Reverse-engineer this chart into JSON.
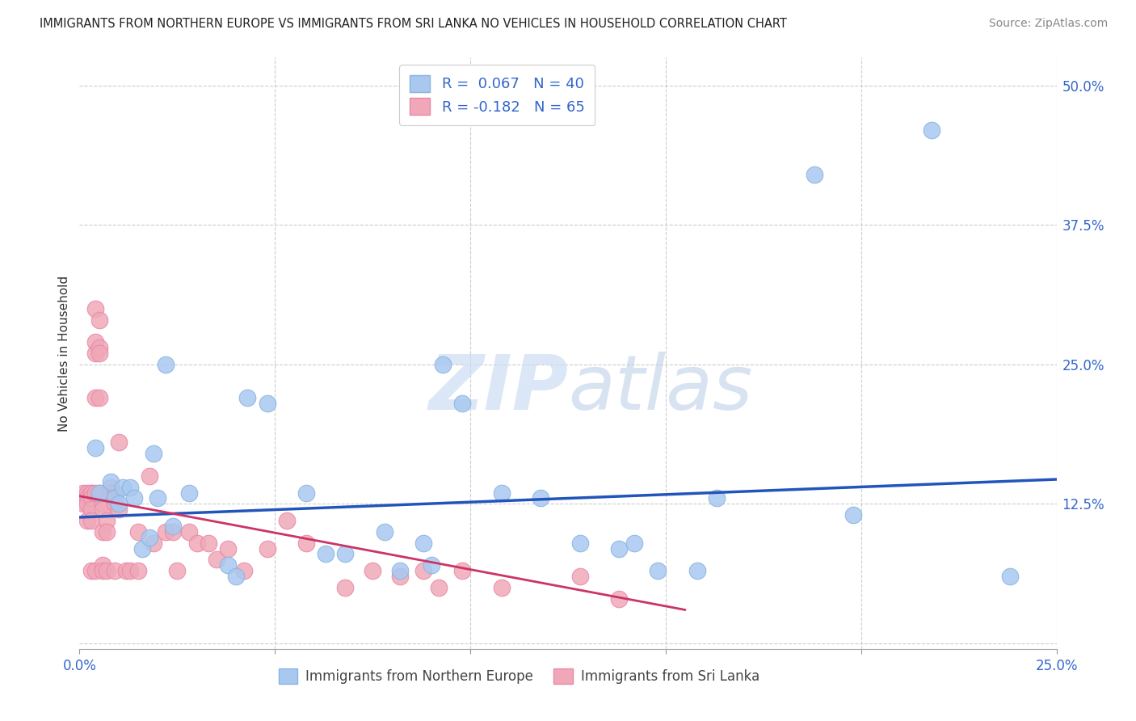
{
  "title": "IMMIGRANTS FROM NORTHERN EUROPE VS IMMIGRANTS FROM SRI LANKA NO VEHICLES IN HOUSEHOLD CORRELATION CHART",
  "source": "Source: ZipAtlas.com",
  "ylabel_label": "No Vehicles in Household",
  "right_yticks": [
    0.0,
    0.125,
    0.25,
    0.375,
    0.5
  ],
  "right_ytick_labels": [
    "",
    "12.5%",
    "25.0%",
    "37.5%",
    "50.0%"
  ],
  "xlim": [
    0.0,
    0.25
  ],
  "ylim": [
    -0.005,
    0.525
  ],
  "blue_R": 0.067,
  "blue_N": 40,
  "pink_R": -0.182,
  "pink_N": 65,
  "blue_color": "#a8c8f0",
  "pink_color": "#f0a8b8",
  "blue_line_color": "#2255bb",
  "pink_line_color": "#cc3366",
  "watermark_zip": "ZIP",
  "watermark_atlas": "atlas",
  "legend_label_blue": "Immigrants from Northern Europe",
  "legend_label_pink": "Immigrants from Sri Lanka",
  "blue_x": [
    0.004,
    0.005,
    0.008,
    0.009,
    0.01,
    0.011,
    0.013,
    0.014,
    0.016,
    0.018,
    0.019,
    0.02,
    0.022,
    0.024,
    0.028,
    0.038,
    0.04,
    0.043,
    0.048,
    0.058,
    0.063,
    0.068,
    0.078,
    0.082,
    0.088,
    0.09,
    0.093,
    0.098,
    0.108,
    0.118,
    0.128,
    0.138,
    0.142,
    0.148,
    0.158,
    0.163,
    0.188,
    0.198,
    0.218,
    0.238
  ],
  "blue_y": [
    0.175,
    0.135,
    0.145,
    0.13,
    0.125,
    0.14,
    0.14,
    0.13,
    0.085,
    0.095,
    0.17,
    0.13,
    0.25,
    0.105,
    0.135,
    0.07,
    0.06,
    0.22,
    0.215,
    0.135,
    0.08,
    0.08,
    0.1,
    0.065,
    0.09,
    0.07,
    0.25,
    0.215,
    0.135,
    0.13,
    0.09,
    0.085,
    0.09,
    0.065,
    0.065,
    0.13,
    0.42,
    0.115,
    0.46,
    0.06
  ],
  "pink_x": [
    0.001,
    0.001,
    0.002,
    0.002,
    0.002,
    0.002,
    0.003,
    0.003,
    0.003,
    0.003,
    0.003,
    0.003,
    0.004,
    0.004,
    0.004,
    0.004,
    0.004,
    0.004,
    0.005,
    0.005,
    0.005,
    0.005,
    0.005,
    0.006,
    0.006,
    0.006,
    0.006,
    0.006,
    0.007,
    0.007,
    0.007,
    0.008,
    0.008,
    0.009,
    0.009,
    0.009,
    0.01,
    0.01,
    0.012,
    0.013,
    0.015,
    0.015,
    0.018,
    0.019,
    0.022,
    0.024,
    0.025,
    0.028,
    0.03,
    0.033,
    0.035,
    0.038,
    0.042,
    0.048,
    0.053,
    0.058,
    0.068,
    0.075,
    0.082,
    0.088,
    0.092,
    0.098,
    0.108,
    0.128,
    0.138
  ],
  "pink_y": [
    0.135,
    0.125,
    0.135,
    0.13,
    0.125,
    0.11,
    0.135,
    0.135,
    0.13,
    0.12,
    0.11,
    0.065,
    0.3,
    0.27,
    0.26,
    0.22,
    0.135,
    0.065,
    0.29,
    0.265,
    0.26,
    0.22,
    0.135,
    0.125,
    0.12,
    0.1,
    0.07,
    0.065,
    0.11,
    0.1,
    0.065,
    0.14,
    0.135,
    0.135,
    0.125,
    0.065,
    0.18,
    0.12,
    0.065,
    0.065,
    0.1,
    0.065,
    0.15,
    0.09,
    0.1,
    0.1,
    0.065,
    0.1,
    0.09,
    0.09,
    0.075,
    0.085,
    0.065,
    0.085,
    0.11,
    0.09,
    0.05,
    0.065,
    0.06,
    0.065,
    0.05,
    0.065,
    0.05,
    0.06,
    0.04
  ],
  "blue_line_x": [
    0.0,
    0.25
  ],
  "blue_line_y": [
    0.113,
    0.147
  ],
  "pink_line_x": [
    0.0,
    0.155
  ],
  "pink_line_y": [
    0.132,
    0.03
  ]
}
